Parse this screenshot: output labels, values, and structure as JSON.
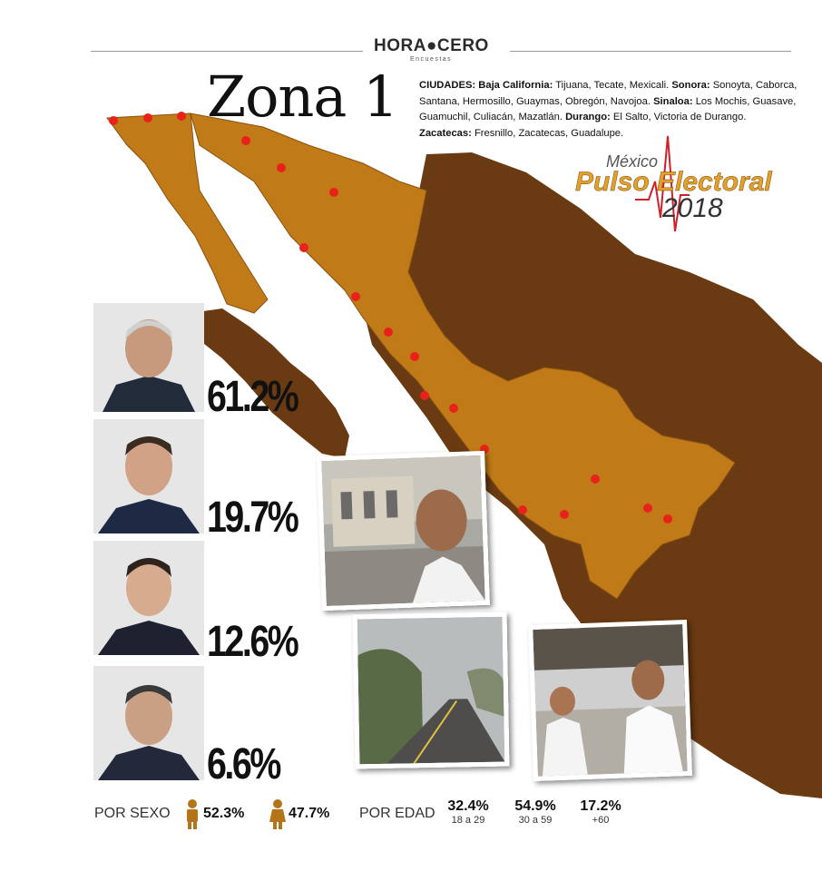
{
  "header": {
    "logo_text": "HORA●CERO",
    "logo_subtitle": "Encuestas",
    "title": "Zona 1"
  },
  "cities": {
    "label": "CIUDADES:",
    "groups": [
      {
        "state": "Baja California:",
        "list": "Tijuana, Tecate, Mexicali."
      },
      {
        "state": "Sonora:",
        "list": "Sonoyta, Caborca, Santana, Hermosillo, Guaymas, Obregón, Navojoa."
      },
      {
        "state": "Sinaloa:",
        "list": "Los Mochis, Guasave, Guamuchil, Culiacán, Mazatlán."
      },
      {
        "state": "Durango:",
        "list": "El Salto, Victoria de Durango."
      },
      {
        "state": "Zacatecas:",
        "list": "Fresnillo, Zacatecas, Guadalupe."
      }
    ]
  },
  "brand": {
    "line1": "México",
    "line2": "Pulso Electoral",
    "line3": "2018"
  },
  "candidates": [
    {
      "percent": "61.2%"
    },
    {
      "percent": "19.7%"
    },
    {
      "percent": "12.6%"
    },
    {
      "percent": "6.6%"
    }
  ],
  "stats": {
    "sex_label": "POR SEXO",
    "male": "52.3%",
    "female": "47.7%",
    "age_label": "POR EDAD",
    "ages": [
      {
        "value": "32.4%",
        "range": "18 a 29"
      },
      {
        "value": "54.9%",
        "range": "30 a 59"
      },
      {
        "value": "17.2%",
        "range": "+60"
      }
    ]
  },
  "colors": {
    "zone_fill": "#c07a18",
    "other_fill": "#6a3a12",
    "dot": "#e8221b"
  },
  "photos": {
    "photo1": "Reporter in front of building",
    "photo2": "Foggy road",
    "photo3": "Two men at a booth"
  }
}
